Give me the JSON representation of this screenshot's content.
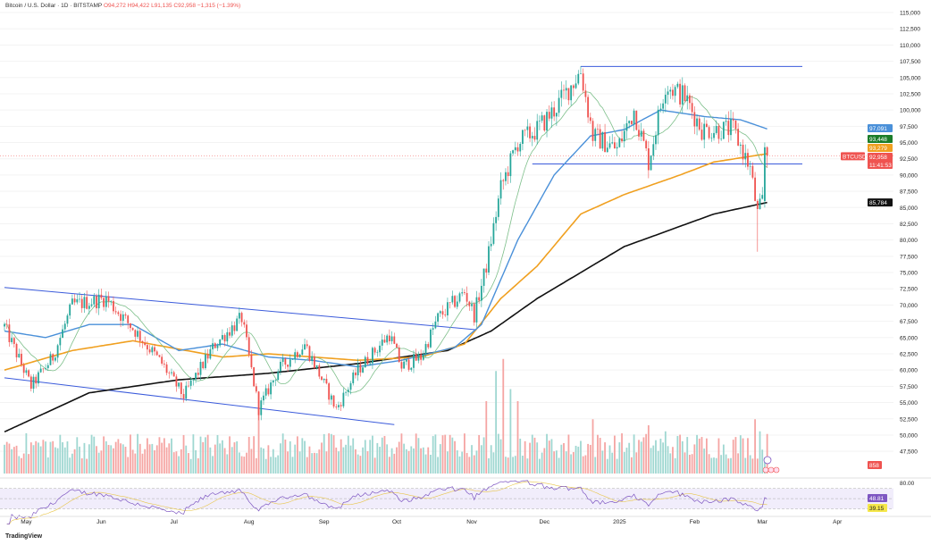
{
  "header": {
    "symbol": "Bitcoin / U.S. Dollar · 1D · BITSTAMP",
    "open": "O94,272",
    "high": "H94,422",
    "low": "L91,135",
    "close": "C92,958",
    "change": "−1,315 (−1.39%)"
  },
  "branding": "TradingView",
  "price_labels": {
    "ma_blue": "97,091",
    "ma_green": "93,448",
    "ma_orange": "93,279",
    "last": "92,958",
    "countdown": "11:41:53",
    "symbol_tag": "BTCUSD",
    "ma_black": "85,784",
    "volume": "858",
    "rsi": "48.81",
    "rsi_ma": "39.15",
    "rsi_axis": "80.00"
  },
  "colors": {
    "up": "#26a69a",
    "down": "#ef5350",
    "blue": "#4a90d9",
    "orange": "#f0a020",
    "green": "#7dbf8a",
    "black": "#111111",
    "trend": "#3b5bdb",
    "rsi": "#7e57c2"
  },
  "chart_data": {
    "type": "candlestick",
    "title": "Bitcoin / U.S. Dollar · 1D · BITSTAMP",
    "ylim": [
      47500,
      115000
    ],
    "y_ticks": [
      "115,000",
      "112,500",
      "110,000",
      "107,500",
      "105,000",
      "102,500",
      "100,000",
      "97,500",
      "95,000",
      "92,500",
      "90,000",
      "87,500",
      "85,000",
      "82,500",
      "80,000",
      "77,500",
      "75,000",
      "72,500",
      "70,000",
      "67,500",
      "65,000",
      "62,500",
      "60,000",
      "57,500",
      "55,000",
      "52,500",
      "50,000",
      "47,500"
    ],
    "x_ticks": [
      {
        "label": "May",
        "day": 9
      },
      {
        "label": "Jun",
        "day": 40
      },
      {
        "label": "Jul",
        "day": 70
      },
      {
        "label": "Aug",
        "day": 101
      },
      {
        "label": "Sep",
        "day": 132
      },
      {
        "label": "Oct",
        "day": 162
      },
      {
        "label": "Nov",
        "day": 193
      },
      {
        "label": "Dec",
        "day": 223
      },
      {
        "label": "2025",
        "day": 254
      },
      {
        "label": "Feb",
        "day": 285
      },
      {
        "label": "Mar",
        "day": 313
      },
      {
        "label": "Apr",
        "day": 344
      }
    ],
    "close_path": [
      [
        0,
        66700
      ],
      [
        9,
        59200
      ],
      [
        11,
        57500
      ],
      [
        20,
        62000
      ],
      [
        28,
        70000
      ],
      [
        42,
        71000
      ],
      [
        54,
        66000
      ],
      [
        65,
        61000
      ],
      [
        74,
        56000
      ],
      [
        87,
        64000
      ],
      [
        98,
        68000
      ],
      [
        105,
        54000
      ],
      [
        113,
        60000
      ],
      [
        124,
        64000
      ],
      [
        137,
        54000
      ],
      [
        146,
        60000
      ],
      [
        159,
        65500
      ],
      [
        164,
        60500
      ],
      [
        172,
        62000
      ],
      [
        179,
        68000
      ],
      [
        190,
        72000
      ],
      [
        194,
        68500
      ],
      [
        199,
        76000
      ],
      [
        205,
        88000
      ],
      [
        212,
        95000
      ],
      [
        220,
        97000
      ],
      [
        227,
        100000
      ],
      [
        238,
        106000
      ],
      [
        243,
        96000
      ],
      [
        253,
        94000
      ],
      [
        260,
        100000
      ],
      [
        266,
        92000
      ],
      [
        273,
        104000
      ],
      [
        281,
        102000
      ],
      [
        288,
        97000
      ],
      [
        301,
        97000
      ],
      [
        308,
        91000
      ],
      [
        311,
        84000
      ],
      [
        313,
        86000
      ]
    ],
    "last_candles": [
      {
        "o": 86000,
        "h": 95000,
        "l": 85000,
        "c": 94272
      },
      {
        "o": 94272,
        "h": 94422,
        "l": 91135,
        "c": 92958
      }
    ],
    "crash_wick_low": 78200,
    "ma_blue": [
      [
        0,
        66000
      ],
      [
        17,
        65000
      ],
      [
        35,
        67000
      ],
      [
        53,
        67000
      ],
      [
        72,
        63000
      ],
      [
        90,
        64000
      ],
      [
        109,
        62000
      ],
      [
        127,
        61500
      ],
      [
        146,
        60500
      ],
      [
        164,
        61500
      ],
      [
        186,
        63500
      ],
      [
        197,
        67000
      ],
      [
        212,
        80000
      ],
      [
        227,
        90000
      ],
      [
        242,
        96000
      ],
      [
        256,
        97000
      ],
      [
        271,
        100000
      ],
      [
        289,
        99000
      ],
      [
        304,
        98500
      ],
      [
        315,
        97091
      ]
    ],
    "ma_orange": [
      [
        0,
        60000
      ],
      [
        28,
        63000
      ],
      [
        53,
        64500
      ],
      [
        90,
        62000
      ],
      [
        109,
        62500
      ],
      [
        146,
        61500
      ],
      [
        172,
        62000
      ],
      [
        190,
        64000
      ],
      [
        205,
        71000
      ],
      [
        220,
        76000
      ],
      [
        238,
        84000
      ],
      [
        256,
        87000
      ],
      [
        279,
        90000
      ],
      [
        293,
        92000
      ],
      [
        315,
        93279
      ]
    ],
    "ma_black": [
      [
        0,
        50500
      ],
      [
        35,
        56500
      ],
      [
        72,
        58500
      ],
      [
        109,
        59500
      ],
      [
        146,
        61000
      ],
      [
        183,
        63000
      ],
      [
        201,
        66000
      ],
      [
        220,
        71000
      ],
      [
        256,
        79000
      ],
      [
        293,
        84000
      ],
      [
        315,
        85784
      ]
    ],
    "volume_spikes": [
      [
        105,
        0.55
      ],
      [
        199,
        0.6
      ],
      [
        203,
        0.85
      ],
      [
        206,
        0.95
      ],
      [
        209,
        0.7
      ],
      [
        212,
        0.6
      ],
      [
        243,
        0.45
      ],
      [
        266,
        0.4
      ],
      [
        273,
        0.35
      ],
      [
        310,
        0.45
      ],
      [
        312,
        0.35
      ]
    ],
    "drawings": {
      "channel_upper": [
        [
          0,
          72700
        ],
        [
          195,
          66200
        ]
      ],
      "channel_lower": [
        [
          0,
          58800
        ],
        [
          161,
          51600
        ]
      ],
      "resistance": {
        "price": 106700,
        "from_day": 238
      },
      "support": {
        "price": 91700,
        "from_day": 218
      }
    }
  }
}
